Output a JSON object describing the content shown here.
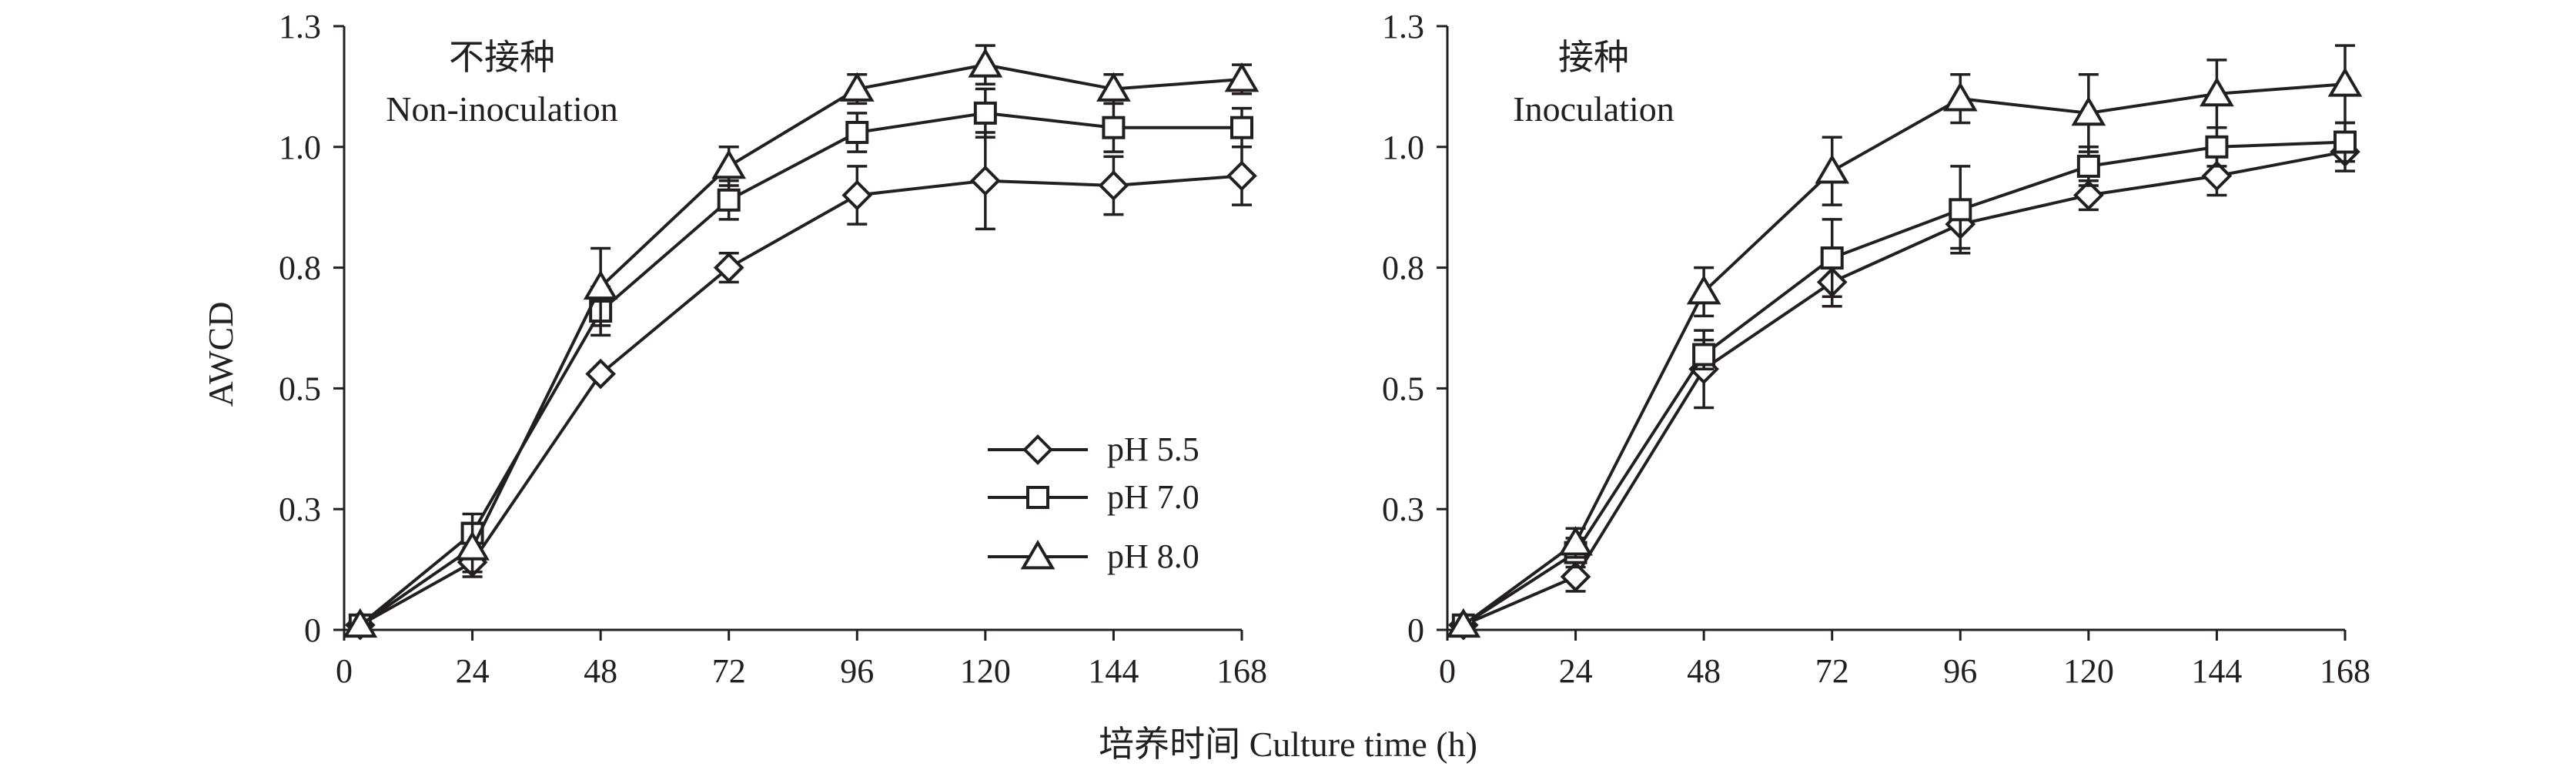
{
  "chart_data": [
    {
      "type": "line",
      "title": "",
      "annotation_cn": "不接种",
      "annotation_en": "Non-inoculation",
      "ylabel": "AWCD",
      "xlabel": "",
      "x": [
        0,
        24,
        48,
        72,
        96,
        120,
        144,
        168
      ],
      "xticks": [
        "0",
        "24",
        "48",
        "72",
        "96",
        "120",
        "144",
        "168"
      ],
      "yticks": [
        0,
        0.25,
        0.5,
        0.75,
        1.0,
        1.25
      ],
      "ytick_labels": [
        "0",
        "0.3",
        "0.5",
        "0.8",
        "1.0",
        "1.3"
      ],
      "ylim": [
        0,
        1.25
      ],
      "xlim": [
        0,
        168
      ],
      "series": [
        {
          "name": "pH 5.5",
          "marker": "diamond",
          "x": [
            3,
            24,
            48,
            72,
            96,
            120,
            144,
            168
          ],
          "values": [
            0.01,
            0.14,
            0.53,
            0.75,
            0.9,
            0.93,
            0.92,
            0.94
          ],
          "err": [
            0.01,
            0.03,
            0.01,
            0.03,
            0.06,
            0.1,
            0.06,
            0.06
          ]
        },
        {
          "name": "pH 7.0",
          "marker": "square",
          "x": [
            3,
            24,
            48,
            72,
            96,
            120,
            144,
            168
          ],
          "values": [
            0.01,
            0.2,
            0.66,
            0.89,
            1.03,
            1.07,
            1.04,
            1.04
          ],
          "err": [
            0.01,
            0.04,
            0.05,
            0.04,
            0.04,
            0.05,
            0.05,
            0.04
          ]
        },
        {
          "name": "pH 8.0",
          "marker": "triangle",
          "x": [
            3,
            24,
            48,
            72,
            96,
            120,
            144,
            168
          ],
          "values": [
            0.01,
            0.17,
            0.71,
            0.96,
            1.12,
            1.17,
            1.12,
            1.14
          ],
          "err": [
            0.01,
            0.05,
            0.08,
            0.04,
            0.03,
            0.04,
            0.03,
            0.03
          ]
        }
      ]
    },
    {
      "type": "line",
      "title": "",
      "annotation_cn": "接种",
      "annotation_en": "Inoculation",
      "ylabel": "",
      "xlabel": "",
      "x": [
        0,
        24,
        48,
        72,
        96,
        120,
        144,
        168
      ],
      "xticks": [
        "0",
        "24",
        "48",
        "72",
        "96",
        "120",
        "144",
        "168"
      ],
      "yticks": [
        0,
        0.25,
        0.5,
        0.75,
        1.0,
        1.25
      ],
      "ytick_labels": [
        "0",
        "0.3",
        "0.5",
        "0.8",
        "1.0",
        "1.3"
      ],
      "ylim": [
        0,
        1.25
      ],
      "xlim": [
        0,
        168
      ],
      "series": [
        {
          "name": "pH 5.5",
          "marker": "diamond",
          "x": [
            3,
            24,
            48,
            72,
            96,
            120,
            144,
            168
          ],
          "values": [
            0.01,
            0.11,
            0.54,
            0.72,
            0.84,
            0.9,
            0.94,
            0.99
          ],
          "err": [
            0.01,
            0.03,
            0.08,
            0.05,
            0.05,
            0.03,
            0.04,
            0.04
          ]
        },
        {
          "name": "pH 7.0",
          "marker": "square",
          "x": [
            3,
            24,
            48,
            72,
            96,
            120,
            144,
            168
          ],
          "values": [
            0.01,
            0.16,
            0.57,
            0.77,
            0.87,
            0.96,
            1.0,
            1.01
          ],
          "err": [
            0.01,
            0.03,
            0.03,
            0.08,
            0.09,
            0.04,
            0.04,
            0.04
          ]
        },
        {
          "name": "pH 8.0",
          "marker": "triangle",
          "x": [
            3,
            24,
            48,
            72,
            96,
            120,
            144,
            168
          ],
          "values": [
            0.01,
            0.18,
            0.7,
            0.95,
            1.1,
            1.07,
            1.11,
            1.13
          ],
          "err": [
            0.01,
            0.03,
            0.05,
            0.07,
            0.05,
            0.08,
            0.07,
            0.08
          ]
        }
      ]
    }
  ],
  "legend": {
    "entries": [
      "pH 5.5",
      "pH 7.0",
      "pH 8.0"
    ]
  },
  "shared_xlabel": "培养时间 Culture time (h)"
}
